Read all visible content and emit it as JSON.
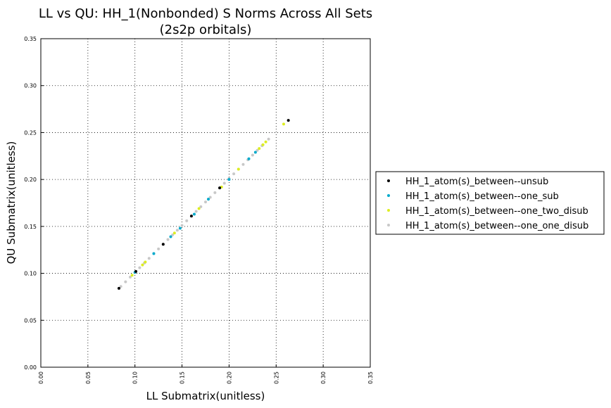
{
  "chart_data": {
    "type": "scatter",
    "title_line1": "LL vs QU: HH_1(Nonbonded) S Norms Across All Sets",
    "title_line2": "(2s2p orbitals)",
    "xlabel": "LL Submatrix(unitless)",
    "ylabel": "QU Submatrix(unitless)",
    "xlim": [
      0,
      0.35
    ],
    "ylim": [
      0,
      0.35
    ],
    "grid": true,
    "legend_position": "center-right outside",
    "x_ticks": [
      "0.00",
      "0.05",
      "0.10",
      "0.15",
      "0.20",
      "0.25",
      "0.30",
      "0.35"
    ],
    "y_ticks": [
      "0.00",
      "0.05",
      "0.10",
      "0.15",
      "0.20",
      "0.25",
      "0.30",
      "0.35"
    ],
    "series": [
      {
        "name": "HH_1_atom(s)_between--unsub",
        "color": "#000000",
        "points": [
          [
            0.083,
            0.084
          ],
          [
            0.101,
            0.102
          ],
          [
            0.13,
            0.131
          ],
          [
            0.16,
            0.161
          ],
          [
            0.19,
            0.191
          ],
          [
            0.263,
            0.263
          ]
        ]
      },
      {
        "name": "HH_1_atom(s)_between--one_sub",
        "color": "#00aacc",
        "points": [
          [
            0.1,
            0.101
          ],
          [
            0.12,
            0.121
          ],
          [
            0.138,
            0.139
          ],
          [
            0.148,
            0.148
          ],
          [
            0.163,
            0.163
          ],
          [
            0.178,
            0.179
          ],
          [
            0.2,
            0.2
          ],
          [
            0.221,
            0.222
          ],
          [
            0.228,
            0.229
          ]
        ]
      },
      {
        "name": "HH_1_atom(s)_between--one_two_disub",
        "color": "#ddee22",
        "points": [
          [
            0.097,
            0.098
          ],
          [
            0.108,
            0.109
          ],
          [
            0.111,
            0.112
          ],
          [
            0.142,
            0.143
          ],
          [
            0.168,
            0.169
          ],
          [
            0.192,
            0.192
          ],
          [
            0.21,
            0.211
          ],
          [
            0.232,
            0.233
          ],
          [
            0.236,
            0.237
          ],
          [
            0.239,
            0.24
          ],
          [
            0.258,
            0.259
          ]
        ]
      },
      {
        "name": "HH_1_atom(s)_between--one_one_disub",
        "color": "#c8c8c8",
        "points": [
          [
            0.085,
            0.086
          ],
          [
            0.09,
            0.091
          ],
          [
            0.095,
            0.096
          ],
          [
            0.1,
            0.101
          ],
          [
            0.105,
            0.106
          ],
          [
            0.11,
            0.111
          ],
          [
            0.115,
            0.116
          ],
          [
            0.12,
            0.121
          ],
          [
            0.125,
            0.126
          ],
          [
            0.13,
            0.131
          ],
          [
            0.135,
            0.136
          ],
          [
            0.14,
            0.141
          ],
          [
            0.145,
            0.146
          ],
          [
            0.15,
            0.151
          ],
          [
            0.155,
            0.156
          ],
          [
            0.16,
            0.161
          ],
          [
            0.165,
            0.166
          ],
          [
            0.17,
            0.171
          ],
          [
            0.175,
            0.176
          ],
          [
            0.18,
            0.181
          ],
          [
            0.185,
            0.186
          ],
          [
            0.19,
            0.191
          ],
          [
            0.195,
            0.196
          ],
          [
            0.2,
            0.201
          ],
          [
            0.205,
            0.206
          ],
          [
            0.21,
            0.211
          ],
          [
            0.215,
            0.216
          ],
          [
            0.22,
            0.221
          ],
          [
            0.225,
            0.226
          ],
          [
            0.23,
            0.231
          ],
          [
            0.235,
            0.236
          ],
          [
            0.242,
            0.243
          ]
        ]
      }
    ]
  }
}
